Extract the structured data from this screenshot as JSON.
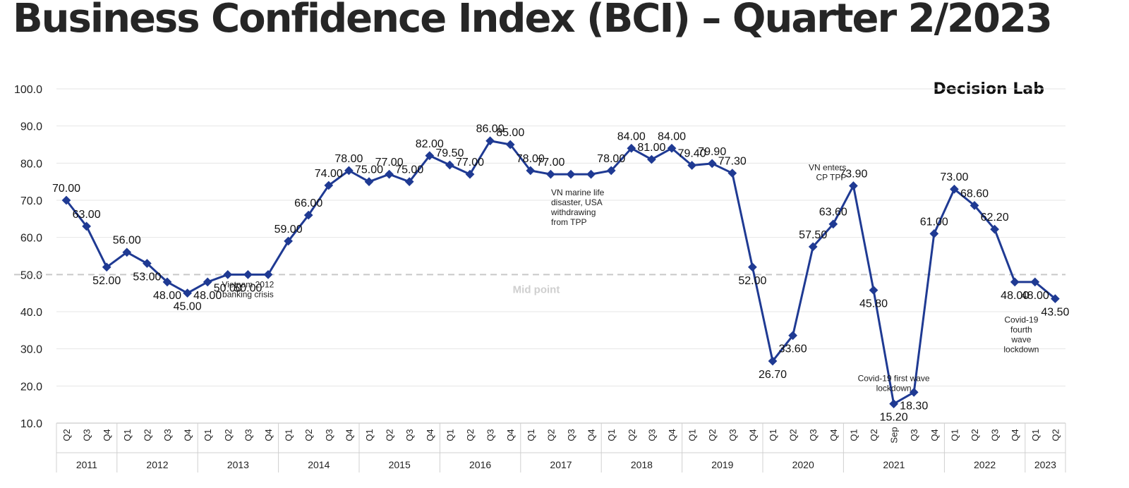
{
  "title": "Business Confidence Index (BCI) – Quarter 2/2023",
  "brand": "Decision Lab",
  "colors": {
    "line": "#1f3a93",
    "marker": "#1f3a93",
    "grid": "#e6e6e6",
    "midline": "#c8c8c8",
    "text": "#222222"
  },
  "chart_data": {
    "type": "line",
    "title": "Business Confidence Index (BCI) – Quarter 2/2023",
    "xlabel": "",
    "ylabel": "",
    "ylim": [
      10,
      100
    ],
    "yticks": [
      "10.0",
      "20.0",
      "30.0",
      "40.0",
      "50.0",
      "60.0",
      "70.0",
      "80.0",
      "90.0",
      "100.0"
    ],
    "grid": true,
    "categories": [
      "Q2",
      "Q3",
      "Q4",
      "Q1",
      "Q2",
      "Q3",
      "Q4",
      "Q1",
      "Q2",
      "Q3",
      "Q4",
      "Q1",
      "Q2",
      "Q3",
      "Q4",
      "Q1",
      "Q2",
      "Q3",
      "Q4",
      "Q1",
      "Q2",
      "Q3",
      "Q4",
      "Q1",
      "Q2",
      "Q3",
      "Q4",
      "Q1",
      "Q2",
      "Q3",
      "Q4",
      "Q1",
      "Q2",
      "Q3",
      "Q4",
      "Q1",
      "Q2",
      "Q3",
      "Q4",
      "Q1",
      "Q2",
      "Sep",
      "Q3",
      "Q4",
      "Q1",
      "Q2",
      "Q3",
      "Q4",
      "Q1",
      "Q2"
    ],
    "years": [
      {
        "label": "2011",
        "start": 0,
        "count": 3
      },
      {
        "label": "2012",
        "start": 3,
        "count": 4
      },
      {
        "label": "2013",
        "start": 7,
        "count": 4
      },
      {
        "label": "2014",
        "start": 11,
        "count": 4
      },
      {
        "label": "2015",
        "start": 15,
        "count": 4
      },
      {
        "label": "2016",
        "start": 19,
        "count": 4
      },
      {
        "label": "2017",
        "start": 23,
        "count": 4
      },
      {
        "label": "2018",
        "start": 27,
        "count": 4
      },
      {
        "label": "2019",
        "start": 31,
        "count": 4
      },
      {
        "label": "2020",
        "start": 35,
        "count": 4
      },
      {
        "label": "2021",
        "start": 39,
        "count": 5
      },
      {
        "label": "2022",
        "start": 44,
        "count": 4
      },
      {
        "label": "2023",
        "start": 48,
        "count": 2
      }
    ],
    "series": [
      {
        "name": "BCI",
        "values": [
          70,
          63,
          52,
          56,
          53,
          48,
          45,
          48,
          50,
          50,
          50,
          59,
          66,
          74,
          78,
          75,
          77,
          75,
          82,
          79.5,
          77,
          86,
          85,
          78,
          77,
          77,
          77,
          78,
          84,
          81,
          84,
          79.4,
          79.9,
          77.3,
          52,
          26.7,
          33.6,
          57.5,
          63.6,
          73.9,
          45.8,
          15.2,
          18.3,
          61,
          73,
          68.6,
          62.2,
          48,
          48,
          43.5
        ],
        "labels": [
          "70.00",
          "63.00",
          "52.00",
          "56.00",
          "53.00",
          "48.00",
          "45.00",
          "48.00",
          "50.00",
          "50.00",
          "",
          "59.00",
          "66.00",
          "74.00",
          "78.00",
          "75.00",
          "77.00",
          "75.00",
          "82.00",
          "79.50",
          "77.00",
          "86.00",
          "85.00",
          "78.00",
          "77.00",
          "",
          "",
          "78.00",
          "84.00",
          "81.00",
          "84.00",
          "79.40",
          "79.90",
          "77.30",
          "52.00",
          "26.70",
          "33.60",
          "57.50",
          "63.60",
          "73.90",
          "45.80",
          "15.20",
          "18.30",
          "61.00",
          "73.00",
          "68.60",
          "62.20",
          "48.00",
          "48.00",
          "43.50"
        ]
      }
    ],
    "midpoint": {
      "value": 50,
      "label": "Mid point"
    },
    "annotations": [
      {
        "index": 9,
        "lines": [
          "Vietnam 2012",
          "banking crisis"
        ]
      },
      {
        "index": 25,
        "lines": [
          "VN marine life",
          "disaster, USA",
          "withdrawing",
          "from TPP"
        ]
      },
      {
        "index": 39,
        "lines": [
          "VN enters",
          "CP TPP"
        ]
      },
      {
        "index": 41,
        "lines": [
          "Covid-19 first wave",
          "lockdown"
        ]
      },
      {
        "index": 49,
        "lines": [
          "Covid-19",
          "fourth",
          "wave",
          "lockdown"
        ]
      }
    ]
  }
}
